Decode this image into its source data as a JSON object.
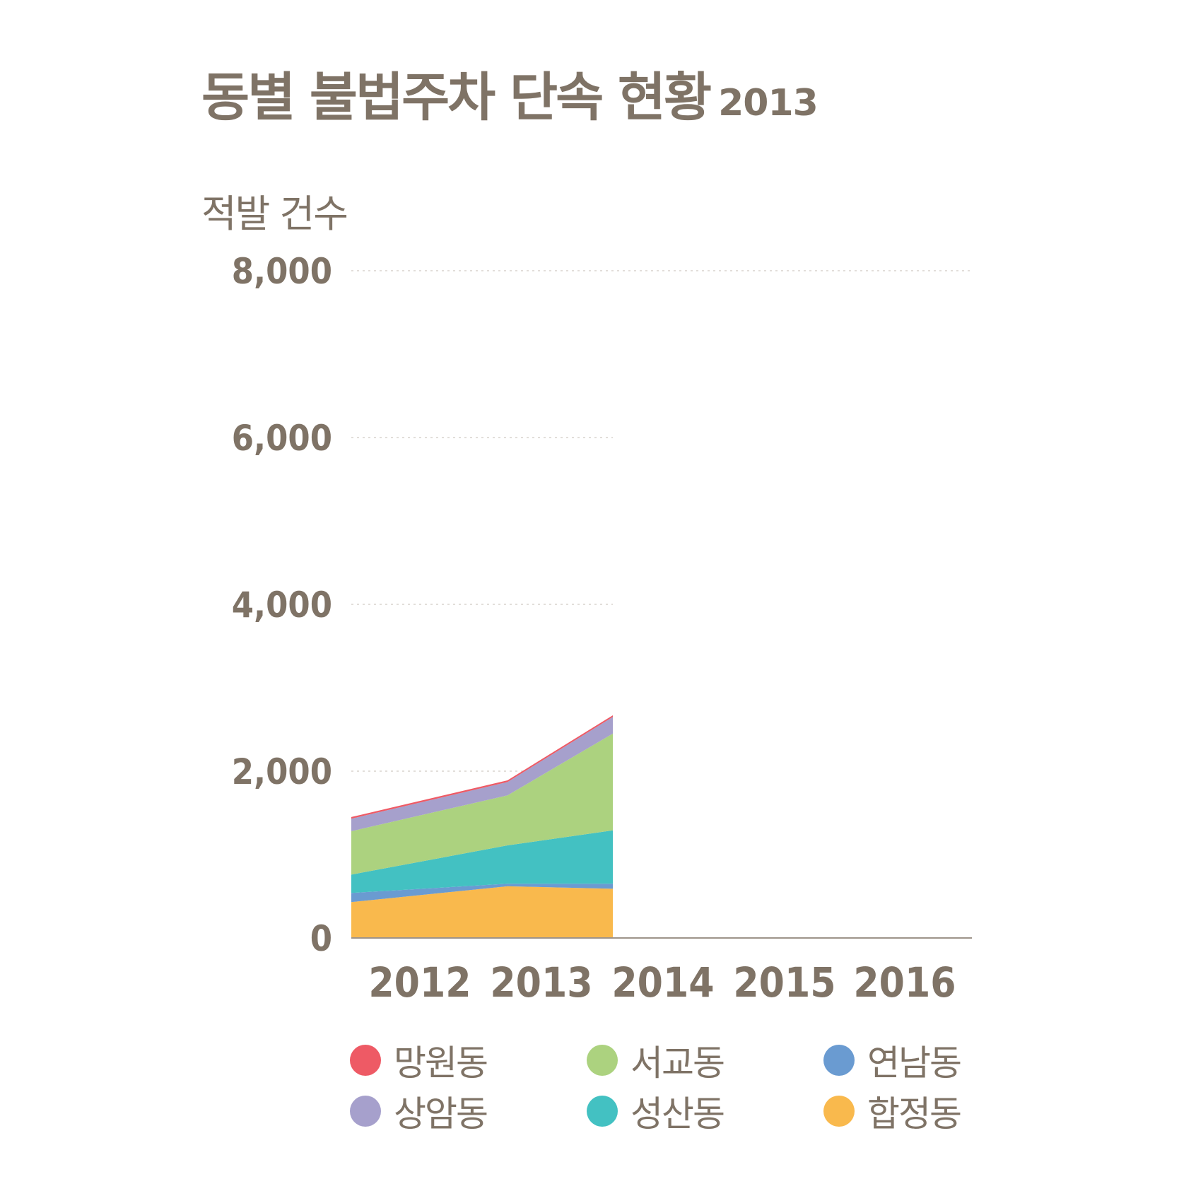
{
  "title": {
    "main": "동별 불법주차 단속 현황",
    "year": "2013"
  },
  "chart_data": {
    "type": "area",
    "stacked": true,
    "title": "동별 불법주차 단속 현황 2013",
    "ylabel": "적발 건수",
    "xlabel": "",
    "categories": [
      "2012",
      "2013",
      "2014",
      "2015",
      "2016"
    ],
    "ylim": [
      0,
      8000
    ],
    "yticks": [
      0,
      2000,
      4000,
      6000,
      8000
    ],
    "ytick_labels": [
      "0",
      "2,000",
      "4,000",
      "6,000",
      "8,000"
    ],
    "grid": "horizontal dotted",
    "legend_position": "bottom",
    "series": [
      {
        "name": "합정동",
        "color": "#f9b94d",
        "values": [
          430,
          620,
          590,
          null,
          null
        ]
      },
      {
        "name": "연남동",
        "color": "#6a9bd1",
        "values": [
          110,
          30,
          60,
          null,
          null
        ]
      },
      {
        "name": "성산동",
        "color": "#43c1c2",
        "values": [
          220,
          460,
          640,
          null,
          null
        ]
      },
      {
        "name": "서교동",
        "color": "#acd27f",
        "values": [
          520,
          600,
          1160,
          null,
          null
        ]
      },
      {
        "name": "상암동",
        "color": "#a6a0cc",
        "values": [
          150,
          160,
          200,
          null,
          null
        ]
      },
      {
        "name": "망원동",
        "color": "#ee5a65",
        "values": [
          20,
          20,
          20,
          null,
          null
        ]
      }
    ]
  },
  "legend": {
    "items": [
      {
        "name": "망원동",
        "color": "#ee5a65"
      },
      {
        "name": "서교동",
        "color": "#acd27f"
      },
      {
        "name": "연남동",
        "color": "#6a9bd1"
      },
      {
        "name": "상암동",
        "color": "#a6a0cc"
      },
      {
        "name": "성산동",
        "color": "#43c1c2"
      },
      {
        "name": "합정동",
        "color": "#f9b94d"
      }
    ]
  }
}
